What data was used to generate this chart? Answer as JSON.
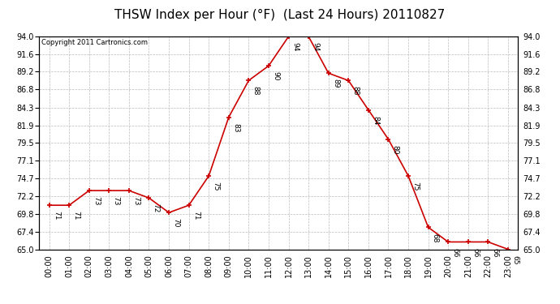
{
  "title": "THSW Index per Hour (°F)  (Last 24 Hours) 20110827",
  "copyright": "Copyright 2011 Cartronics.com",
  "hours": [
    "00:00",
    "01:00",
    "02:00",
    "03:00",
    "04:00",
    "05:00",
    "06:00",
    "07:00",
    "08:00",
    "09:00",
    "10:00",
    "11:00",
    "12:00",
    "13:00",
    "14:00",
    "15:00",
    "16:00",
    "17:00",
    "18:00",
    "19:00",
    "20:00",
    "21:00",
    "22:00",
    "23:00"
  ],
  "values": [
    71,
    71,
    73,
    73,
    73,
    72,
    70,
    71,
    75,
    83,
    88,
    90,
    94,
    94,
    89,
    88,
    84,
    80,
    75,
    68,
    66,
    66,
    66,
    65
  ],
  "line_color": "#cc0000",
  "marker_color": "#cc0000",
  "bg_color": "#ffffff",
  "grid_color": "#bbbbbb",
  "ylim_min": 65.0,
  "ylim_max": 94.0,
  "yticks": [
    65.0,
    67.4,
    69.8,
    72.2,
    74.7,
    77.1,
    79.5,
    81.9,
    84.3,
    86.8,
    89.2,
    91.6,
    94.0
  ],
  "title_fontsize": 11,
  "tick_fontsize": 7,
  "annotation_fontsize": 6.5
}
